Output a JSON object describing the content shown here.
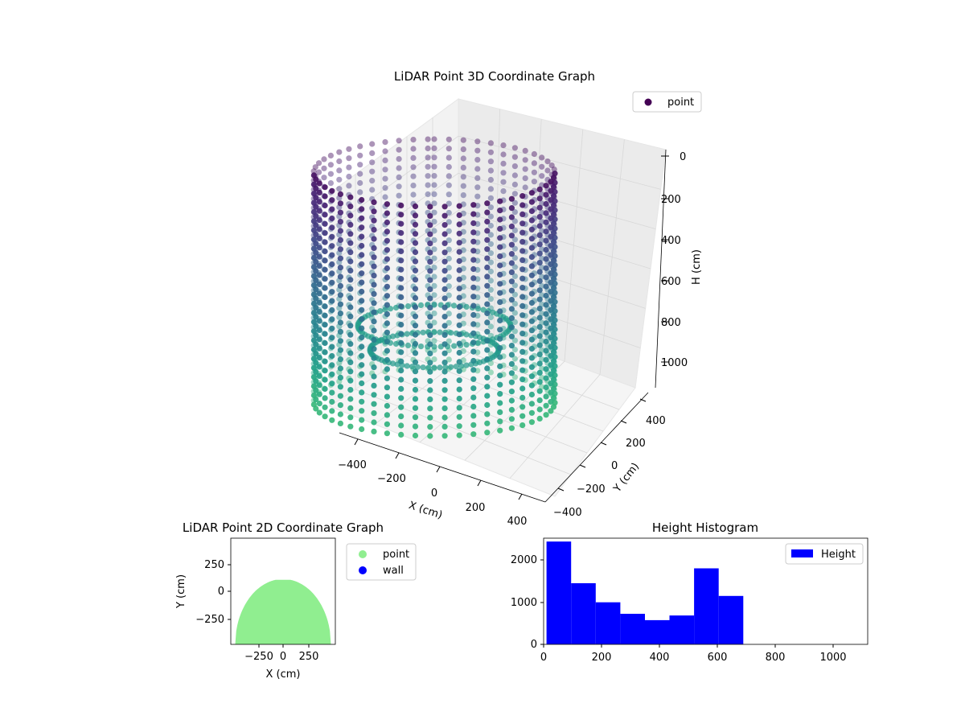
{
  "figure": {
    "background": "#ffffff"
  },
  "chart_data": [
    {
      "id": "lidar-3d",
      "type": "scatter",
      "title": "LiDAR Point 3D Coordinate Graph",
      "xlabel": "X (cm)",
      "ylabel": "Y (cm)",
      "zlabel": "H (cm)",
      "xticks": [
        "−400",
        "−200",
        "0",
        "200",
        "400"
      ],
      "yticks": [
        "−400",
        "−200",
        "0",
        "200",
        "400"
      ],
      "zticks": [
        "0",
        "200",
        "400",
        "600",
        "800",
        "1000"
      ],
      "xlim": [
        -450,
        450
      ],
      "ylim": [
        -450,
        450
      ],
      "zlim": [
        1100,
        0
      ],
      "grid": true,
      "colormap": "viridis",
      "legend": {
        "entries": [
          {
            "label": "point",
            "color": "#440154"
          }
        ],
        "position": "top-right"
      },
      "series": [
        {
          "name": "point",
          "shape": "cylinder-wall",
          "radius": 420,
          "angle_range_deg": [
            -90,
            270
          ],
          "height_top": 0,
          "height_bottom": 1000
        },
        {
          "name": "point",
          "shape": "inner-ring",
          "radius": 300,
          "height": 600
        }
      ]
    },
    {
      "id": "lidar-2d",
      "type": "scatter",
      "title": "LiDAR Point 2D Coordinate Graph",
      "xlabel": "X (cm)",
      "ylabel": "Y (cm)",
      "xticks": [
        "−250",
        "0",
        "250"
      ],
      "yticks": [
        "250",
        "0",
        "−250"
      ],
      "xlim": [
        -500,
        500
      ],
      "ylim": [
        -500,
        500
      ],
      "legend": {
        "entries": [
          {
            "label": "point",
            "color": "#90ee90"
          },
          {
            "label": "wall",
            "color": "#0000ff"
          }
        ],
        "position": "outside-right"
      },
      "series": [
        {
          "name": "point",
          "color": "#90ee90",
          "shape": "filled-half-disc",
          "radius": 450,
          "y_max": 100
        }
      ]
    },
    {
      "id": "height-hist",
      "type": "bar",
      "title": "Height Histogram",
      "xlabel": "",
      "ylabel": "",
      "xticks": [
        "0",
        "200",
        "400",
        "600",
        "800",
        "1000"
      ],
      "yticks": [
        "0",
        "1000",
        "2000"
      ],
      "xlim": [
        0,
        1120
      ],
      "ylim": [
        0,
        2500
      ],
      "bar_color": "#0000ff",
      "legend": {
        "entries": [
          {
            "label": "Height",
            "color": "#0000ff"
          }
        ],
        "position": "top-right"
      },
      "bins": [
        {
          "x0": 10,
          "x1": 95,
          "count": 2420
        },
        {
          "x0": 95,
          "x1": 180,
          "count": 1440
        },
        {
          "x0": 180,
          "x1": 265,
          "count": 990
        },
        {
          "x0": 265,
          "x1": 350,
          "count": 720
        },
        {
          "x0": 350,
          "x1": 435,
          "count": 570
        },
        {
          "x0": 435,
          "x1": 520,
          "count": 680
        },
        {
          "x0": 520,
          "x1": 605,
          "count": 1790
        },
        {
          "x0": 605,
          "x1": 690,
          "count": 1140
        }
      ]
    }
  ]
}
